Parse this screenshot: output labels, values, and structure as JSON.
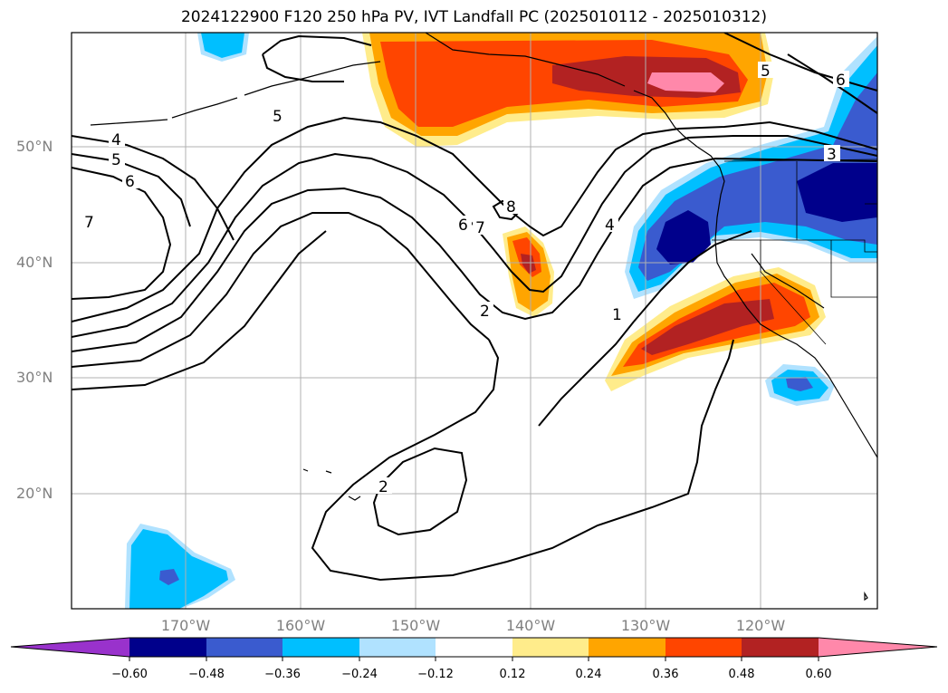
{
  "title": "2024122900 F120 250 hPa PV, IVT Landfall PC (2025010112 - 2025010312)",
  "lat_labels": [
    "50°N",
    "40°N",
    "30°N",
    "20°N"
  ],
  "lon_labels": [
    "170°W",
    "160°W",
    "150°W",
    "140°W",
    "130°W",
    "120°W"
  ],
  "colorbar": {
    "ticks": [
      "−0.60",
      "−0.48",
      "−0.36",
      "−0.24",
      "−0.12",
      "0.12",
      "0.24",
      "0.36",
      "0.48",
      "0.60"
    ],
    "colors": {
      "below": "#9932cc",
      "n060": "#00008b",
      "n048": "#3a5bcf",
      "n036": "#00bfff",
      "n024": "#b0e2ff",
      "neutral": "#ffffff",
      "p012": "#ffec8b",
      "p024": "#ffa500",
      "p036": "#ff4500",
      "p048": "#b22222",
      "above": "#ff88aa"
    }
  },
  "contour_labels": [
    "4",
    "5",
    "6",
    "7",
    "5",
    "6",
    "7",
    "8",
    "2",
    "1",
    "4",
    "2",
    "5",
    "6",
    "3"
  ]
}
